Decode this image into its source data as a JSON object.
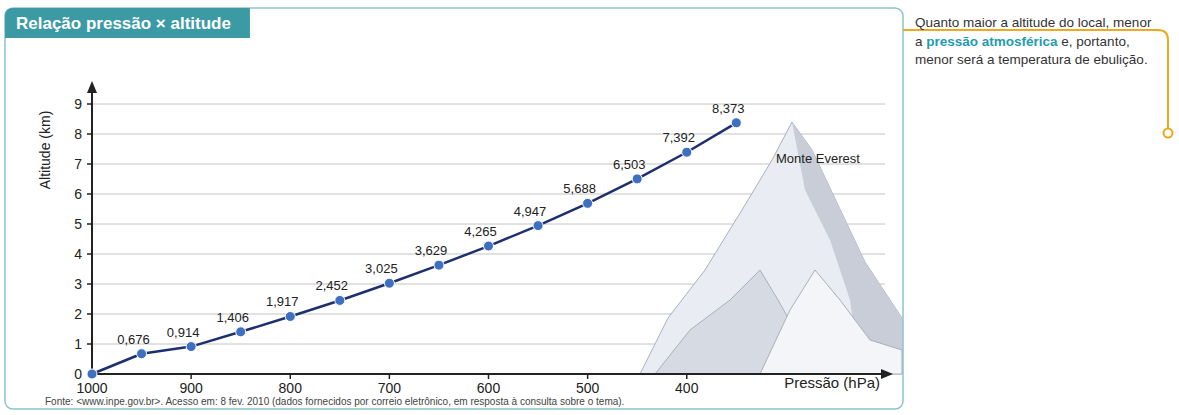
{
  "chart_data": {
    "type": "line",
    "title": "Relação pressão × altitude",
    "x_label": "Pressão (hPa)",
    "y_label": "Altitude (km)",
    "x": [
      1000,
      950,
      900,
      850,
      800,
      750,
      700,
      650,
      600,
      550,
      500,
      450,
      400,
      350
    ],
    "values": [
      0,
      0.676,
      0.914,
      1.406,
      1.917,
      2.452,
      3.025,
      3.629,
      4.265,
      4.947,
      5.688,
      6.503,
      7.392,
      8.373
    ],
    "value_labels": [
      null,
      "0,676",
      "0,914",
      "1,406",
      "1,917",
      "2,452",
      "3,025",
      "3,629",
      "4,265",
      "4,947",
      "5,688",
      "6,503",
      "7,392",
      "8,373"
    ],
    "data_labels": true,
    "xlim": [
      1000,
      200
    ],
    "xticks": [
      1000,
      900,
      800,
      700,
      600,
      500,
      400
    ],
    "ylim": [
      0,
      9.5
    ],
    "yticks": [
      0,
      1,
      2,
      3,
      4,
      5,
      6,
      7,
      8,
      9
    ],
    "grid": true,
    "color": "#1d2f6e",
    "marker": "circle",
    "annotations": [
      "Monte Everest"
    ],
    "source": "Fonte: <www.inpe.gov.br>. Acesso em: 8 fev. 2010 (dados fornecidos por correio eletrônico, em resposta à consulta sobre o tema).",
    "caption": [
      "Quanto maior a altitude do local, menor a ",
      "pressão atmosférica",
      " e, portanto, menor será a temperatura de ebulição."
    ]
  }
}
